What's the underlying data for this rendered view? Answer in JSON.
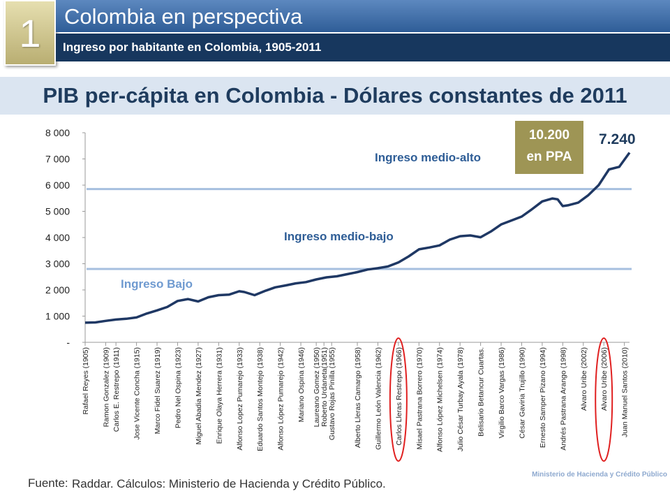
{
  "header": {
    "section_number": "1",
    "title": "Colombia en perspectiva",
    "subtitle": "Ingreso por habitante en Colombia, 1905-2011"
  },
  "chart_title": "PIB per-cápita en Colombia - Dólares constantes de 2011",
  "footer": {
    "source_label": "Fuente:",
    "source_text": "Raddar. Cálculos: Ministerio de Hacienda y Crédito Público.",
    "ministry": "Ministerio de Hacienda y Crédito Público"
  },
  "colors": {
    "line": "#1f3864",
    "threshold": "#a6bfdf",
    "label_text": "#2e5d96",
    "low_label": "#6f9ad0",
    "ppa_box": "#9e9555",
    "circle": "#e02020"
  },
  "chart_data": {
    "type": "line",
    "ylim": [
      0,
      8000
    ],
    "yticks": [
      {
        "value": 0,
        "label": "-"
      },
      {
        "value": 1000,
        "label": "1 000"
      },
      {
        "value": 2000,
        "label": "2 000"
      },
      {
        "value": 3000,
        "label": "3 000"
      },
      {
        "value": 4000,
        "label": "4 000"
      },
      {
        "value": 5000,
        "label": "5 000"
      },
      {
        "value": 6000,
        "label": "6 000"
      },
      {
        "value": 7000,
        "label": "7 000"
      },
      {
        "value": 8000,
        "label": "8 000"
      }
    ],
    "xlim": [
      1905,
      2011
    ],
    "x": [
      1905,
      1907,
      1909,
      1911,
      1913,
      1915,
      1917,
      1919,
      1921,
      1923,
      1925,
      1927,
      1929,
      1931,
      1933,
      1935,
      1936,
      1938,
      1940,
      1942,
      1944,
      1946,
      1948,
      1950,
      1952,
      1954,
      1956,
      1958,
      1960,
      1962,
      1964,
      1966,
      1968,
      1970,
      1972,
      1974,
      1976,
      1978,
      1980,
      1982,
      1984,
      1986,
      1988,
      1990,
      1992,
      1994,
      1996,
      1997,
      1998,
      1999,
      2001,
      2003,
      2005,
      2007,
      2009,
      2011
    ],
    "y": [
      750,
      760,
      820,
      870,
      900,
      950,
      1100,
      1220,
      1350,
      1580,
      1650,
      1560,
      1720,
      1800,
      1820,
      1950,
      1920,
      1800,
      1960,
      2100,
      2170,
      2250,
      2300,
      2400,
      2480,
      2520,
      2600,
      2680,
      2780,
      2830,
      2900,
      3050,
      3280,
      3550,
      3620,
      3700,
      3920,
      4050,
      4080,
      4010,
      4230,
      4500,
      4650,
      4800,
      5080,
      5380,
      5490,
      5460,
      5200,
      5230,
      5330,
      5620,
      6000,
      6600,
      6700,
      7240
    ],
    "x_labels": [
      {
        "year": 1905,
        "label": "Rafael Reyes   (1905)"
      },
      {
        "year": 1909,
        "label": "Ramon Gonzalez   (1909)"
      },
      {
        "year": 1911,
        "label": "Carlos E. Restrepo  (1911)"
      },
      {
        "year": 1915,
        "label": "Jose Vicente Concha  (1915)"
      },
      {
        "year": 1919,
        "label": "Marco Fidel Suarez  (1919)"
      },
      {
        "year": 1923,
        "label": "Pedro Nel Ospina (1923)"
      },
      {
        "year": 1927,
        "label": "Miguel Abadia Mendez  (1927)"
      },
      {
        "year": 1931,
        "label": "Enrique Olaya Herrera  (1931)"
      },
      {
        "year": 1935,
        "label": "Alfonso Lopez Pumarejo  (1933)"
      },
      {
        "year": 1939,
        "label": "Eduardo Santos Montejo (1938)"
      },
      {
        "year": 1943,
        "label": "Alfonso López Pumarejo (1942)"
      },
      {
        "year": 1947,
        "label": "Mariano Ospina (1946)"
      },
      {
        "year": 1950,
        "label": "Laureano Gomez (1950)"
      },
      {
        "year": 1951.5,
        "label": "Roberto Urdaneta(1951)"
      },
      {
        "year": 1953,
        "label": "Gustavo Rojas Pinilla (1955)"
      },
      {
        "year": 1958,
        "label": "Alberto Lleras Camargo (1958)"
      },
      {
        "year": 1962,
        "label": "Guillermo León Valencia (1962)"
      },
      {
        "year": 1966,
        "label": "Carlos Lleras Restrepo (1966)"
      },
      {
        "year": 1970,
        "label": "Misael Pastrana Borrero (1970)"
      },
      {
        "year": 1974,
        "label": "Alfonso López Michelsen (1974)"
      },
      {
        "year": 1978,
        "label": "Julio César Turbay Ayala (1978)"
      },
      {
        "year": 1982,
        "label": "Belisario Betancur Cuartas."
      },
      {
        "year": 1986,
        "label": "Virgilio Barco Vargas (1986)"
      },
      {
        "year": 1990,
        "label": "César Gaviria Trujillo (1990)"
      },
      {
        "year": 1994,
        "label": "Ernesto Samper Pizano (1994)"
      },
      {
        "year": 1998,
        "label": "Andrés Pastrana Arango (1998)"
      },
      {
        "year": 2002,
        "label": "Alvaro Uribe (2002)"
      },
      {
        "year": 2006,
        "label": "Alvaro Uribe (2006)"
      },
      {
        "year": 2010,
        "label": "Juan Manuel Santos (2010)"
      }
    ],
    "highlighted_labels": [
      1966,
      2006
    ],
    "thresholds": [
      {
        "value": 2800,
        "label": "Ingreso Bajo"
      },
      {
        "value": 5850,
        "label": "Ingreso medio-alto"
      }
    ],
    "band_labels": {
      "low": "Ingreso Bajo",
      "medium_low": "Ingreso medio-bajo",
      "medium_high": "Ingreso medio-alto"
    },
    "annotations": {
      "last_value": "7.240",
      "ppa_line1": "10.200",
      "ppa_line2": "en PPA"
    }
  }
}
